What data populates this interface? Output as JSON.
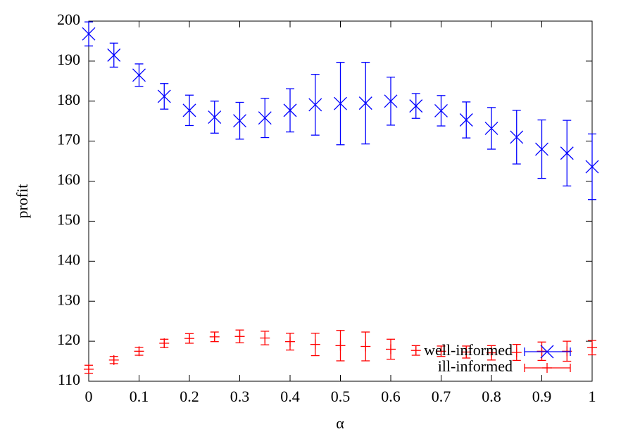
{
  "chart_data": {
    "type": "errorbar",
    "x_label": "α",
    "y_label": "profit",
    "x": [
      0,
      0.05,
      0.1,
      0.15,
      0.2,
      0.25,
      0.3,
      0.35,
      0.4,
      0.45,
      0.5,
      0.55,
      0.6,
      0.65,
      0.7,
      0.75,
      0.8,
      0.85,
      0.9,
      0.95,
      1
    ],
    "series": [
      {
        "name": "well-informed",
        "color": "#0000ff",
        "marker": "x",
        "values": [
          196.8,
          191.5,
          186.5,
          181.2,
          177.7,
          176,
          175.1,
          175.8,
          177.7,
          179.1,
          179.4,
          179.5,
          180,
          178.8,
          177.6,
          175.3,
          173.2,
          171,
          168,
          167,
          163.6
        ],
        "errors": [
          3,
          3,
          2.8,
          3.2,
          3.8,
          4,
          4.6,
          4.9,
          5.4,
          7.6,
          10.3,
          10.2,
          6,
          3.1,
          3.8,
          4.5,
          5.2,
          6.7,
          7.3,
          8.2,
          8.2
        ]
      },
      {
        "name": "ill-informed",
        "color": "#ff0000",
        "marker": "+",
        "values": [
          113,
          115.3,
          117.5,
          119.5,
          120.7,
          121.1,
          121.2,
          120.8,
          119.9,
          119.2,
          118.9,
          118.7,
          118,
          117.7,
          117.5,
          117.3,
          117.1,
          117.2,
          117.5,
          117.5,
          118.4
        ],
        "errors": [
          1,
          0.9,
          1,
          1,
          1.2,
          1.2,
          1.6,
          1.7,
          2.1,
          2.8,
          3.8,
          3.6,
          2.5,
          1.2,
          1.3,
          1.5,
          1.8,
          2,
          2.3,
          2.5,
          1.8
        ]
      }
    ],
    "xlim": [
      0,
      1
    ],
    "xticks": [
      0,
      0.1,
      0.2,
      0.3,
      0.4,
      0.5,
      0.6,
      0.7,
      0.8,
      0.9,
      1
    ],
    "ylim": [
      110,
      200
    ],
    "yticks": [
      110,
      120,
      130,
      140,
      150,
      160,
      170,
      180,
      190,
      200
    ],
    "legend": "bottom-right",
    "grid": false
  }
}
